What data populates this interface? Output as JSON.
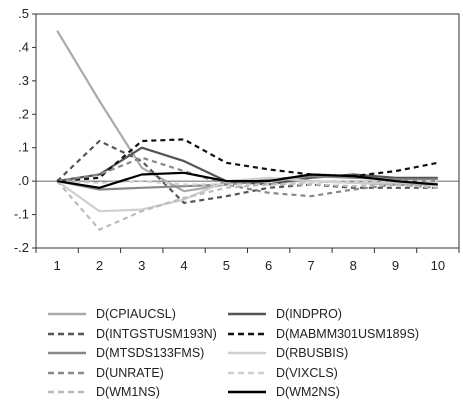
{
  "chart_data": {
    "type": "line",
    "x": [
      1,
      2,
      3,
      4,
      5,
      6,
      7,
      8,
      9,
      10
    ],
    "xlim": [
      0.5,
      10.5
    ],
    "ylim": [
      -0.2,
      0.5
    ],
    "yticks": [
      ".5",
      ".4",
      ".3",
      ".2",
      ".1",
      ".0",
      "-.1",
      "-.2"
    ],
    "ytick_values": [
      0.5,
      0.4,
      0.3,
      0.2,
      0.1,
      0.0,
      -0.1,
      -0.2
    ],
    "xticks": [
      "1",
      "2",
      "3",
      "4",
      "5",
      "6",
      "7",
      "8",
      "9",
      "10"
    ],
    "zero_line": true,
    "legend_position": "bottom",
    "series": [
      {
        "name": "D(CPIAUCSL)",
        "color": "#aaaaaa",
        "dash": "solid",
        "values": [
          0.45,
          0.24,
          0.04,
          -0.03,
          -0.01,
          0.0,
          0.0,
          -0.005,
          -0.01,
          -0.01
        ]
      },
      {
        "name": "D(INDPRO)",
        "color": "#555555",
        "dash": "solid",
        "values": [
          0.0,
          0.02,
          0.1,
          0.06,
          0.0,
          -0.01,
          0.01,
          0.02,
          0.01,
          0.01
        ]
      },
      {
        "name": "D(INTGSTUSM193N)",
        "color": "#555555",
        "dash": "dashed",
        "values": [
          0.0,
          0.12,
          0.06,
          -0.065,
          -0.045,
          -0.02,
          -0.01,
          -0.02,
          -0.02,
          -0.02
        ]
      },
      {
        "name": "D(MABMM301USM189S)",
        "color": "#111111",
        "dash": "dashed",
        "values": [
          0.0,
          0.01,
          0.12,
          0.125,
          0.055,
          0.035,
          0.02,
          0.015,
          0.03,
          0.055
        ]
      },
      {
        "name": "D(MTSDS133FMS)",
        "color": "#888888",
        "dash": "solid",
        "values": [
          0.0,
          -0.025,
          -0.02,
          -0.015,
          -0.01,
          0.005,
          0.015,
          0.01,
          0.005,
          0.005
        ]
      },
      {
        "name": "D(RBUSBIS)",
        "color": "#cfcfcf",
        "dash": "solid",
        "values": [
          0.0,
          -0.09,
          -0.085,
          -0.055,
          0.0,
          0.01,
          0.0,
          -0.005,
          -0.005,
          -0.005
        ]
      },
      {
        "name": "D(UNRATE)",
        "color": "#888888",
        "dash": "dashed",
        "values": [
          0.0,
          0.02,
          0.07,
          0.03,
          -0.01,
          -0.035,
          -0.045,
          -0.025,
          -0.01,
          -0.02
        ]
      },
      {
        "name": "D(VIXCLS)",
        "color": "#d0d0d0",
        "dash": "dashed",
        "values": [
          0.0,
          -0.005,
          0.0,
          -0.01,
          -0.01,
          -0.01,
          -0.005,
          0.0,
          0.0,
          0.0
        ]
      },
      {
        "name": "D(WM1NS)",
        "color": "#bbbbbb",
        "dash": "dashed",
        "values": [
          0.0,
          -0.145,
          -0.09,
          -0.05,
          -0.02,
          -0.01,
          -0.01,
          -0.015,
          -0.01,
          -0.02
        ]
      },
      {
        "name": "D(WM2NS)",
        "color": "#000000",
        "dash": "solid",
        "values": [
          0.0,
          -0.02,
          0.02,
          0.025,
          0.0,
          0.0,
          0.02,
          0.015,
          0.0,
          -0.01
        ]
      }
    ]
  }
}
